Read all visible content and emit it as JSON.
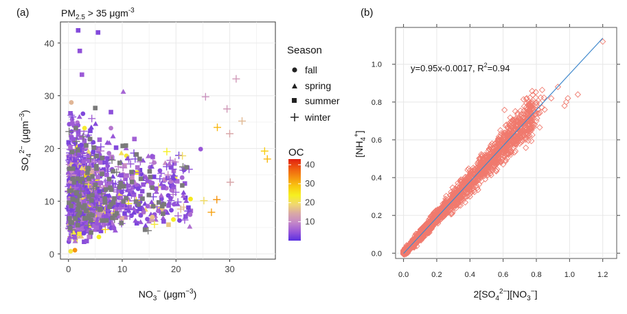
{
  "chart_data": [
    {
      "panel_label": "(a)",
      "type": "scatter",
      "title": {
        "prefix": "PM",
        "sub": "2.5",
        "mid": " > 35 μgm",
        "sup": "-3"
      },
      "xlabel": {
        "a": "NO",
        "a_sub": "3",
        "a_sup": "−",
        "b": " (μgm",
        "b_sup": "−3",
        "c": ")"
      },
      "ylabel": {
        "a": "SO",
        "a_sub": "4",
        "a_sup": "2−",
        "b": " (μgm",
        "b_sup": "−3",
        "c": ")"
      },
      "xlim": [
        -1.5,
        38.5
      ],
      "ylim": [
        -1,
        44
      ],
      "xticks": [
        "0",
        "10",
        "20",
        "30"
      ],
      "yticks": [
        "0",
        "10",
        "20",
        "30",
        "40"
      ],
      "grid": true,
      "legend_title": "Season",
      "legend": [
        {
          "name": "fall",
          "marker": "circle"
        },
        {
          "name": "spring",
          "marker": "triangle"
        },
        {
          "name": "summer",
          "marker": "square"
        },
        {
          "name": "winter",
          "marker": "plus"
        }
      ],
      "colorbar": {
        "title": "OC",
        "min": 0,
        "max": 43,
        "ticks": [
          "10",
          "20",
          "30",
          "40"
        ],
        "colors": [
          "#5a2fe0",
          "#9a58d8",
          "#c487c8",
          "#d9a8a6",
          "#f0d870",
          "#f6f020",
          "#f9c810",
          "#f59010",
          "#ef5a10",
          "#e02010"
        ]
      },
      "sample_points": [
        {
          "x": 1.8,
          "y": 42.4,
          "s": "summer",
          "oc": 3
        },
        {
          "x": 5.5,
          "y": 42.0,
          "s": "summer",
          "oc": 3
        },
        {
          "x": 2.1,
          "y": 38.5,
          "s": "summer",
          "oc": 4
        },
        {
          "x": 2.5,
          "y": 34.0,
          "s": "summer",
          "oc": 5
        },
        {
          "x": 10.2,
          "y": 30.8,
          "s": "spring",
          "oc": 6
        },
        {
          "x": 31.2,
          "y": 33.2,
          "s": "winter",
          "oc": 12
        },
        {
          "x": 25.5,
          "y": 29.8,
          "s": "winter",
          "oc": 11
        },
        {
          "x": 29.5,
          "y": 27.5,
          "s": "winter",
          "oc": 12
        },
        {
          "x": 36.5,
          "y": 19.5,
          "s": "winter",
          "oc": 28
        },
        {
          "x": 37.0,
          "y": 18.0,
          "s": "winter",
          "oc": 30
        },
        {
          "x": 32.3,
          "y": 25.2,
          "s": "winter",
          "oc": 16
        },
        {
          "x": 30.0,
          "y": 22.8,
          "s": "winter",
          "oc": 14
        },
        {
          "x": 27.7,
          "y": 24.0,
          "s": "winter",
          "oc": 30
        },
        {
          "x": 18.3,
          "y": 19.4,
          "s": "winter",
          "oc": 24
        },
        {
          "x": 21.2,
          "y": 18.6,
          "s": "winter",
          "oc": 20
        },
        {
          "x": 30.1,
          "y": 13.6,
          "s": "winter",
          "oc": 14
        },
        {
          "x": 27.6,
          "y": 10.3,
          "s": "winter",
          "oc": 33
        },
        {
          "x": 26.6,
          "y": 7.9,
          "s": "winter",
          "oc": 32
        },
        {
          "x": 25.2,
          "y": 10.1,
          "s": "winter",
          "oc": 20
        },
        {
          "x": 20.9,
          "y": 8.5,
          "s": "winter",
          "oc": 16
        },
        {
          "x": 16.0,
          "y": 5.6,
          "s": "winter",
          "oc": 22
        },
        {
          "x": 1.2,
          "y": 0.7,
          "s": "fall",
          "oc": 33
        },
        {
          "x": 0.4,
          "y": 0.5,
          "s": "fall",
          "oc": 22
        }
      ]
    },
    {
      "panel_label": "(b)",
      "type": "scatter",
      "xlabel": {
        "a": "2[SO",
        "a_sub": "4",
        "a_sup": "2−",
        "b": "][NO",
        "b_sub": "3",
        "b_sup": "−",
        "c": "]"
      },
      "ylabel": {
        "a": "[NH",
        "a_sub": "4",
        "a_sup": "+",
        "c": "]"
      },
      "xlim": [
        -0.048,
        1.284
      ],
      "ylim": [
        -0.028,
        1.195
      ],
      "xticks": [
        "0.0",
        "0.2",
        "0.4",
        "0.6",
        "0.8",
        "1.0",
        "1.2"
      ],
      "yticks": [
        "0.0",
        "0.2",
        "0.4",
        "0.6",
        "0.8",
        "1.0"
      ],
      "grid": true,
      "marker_color": "#f07a6e",
      "fit_color": "#3f88cc",
      "fit": {
        "slope": 0.95,
        "intercept": -0.0017,
        "r2": 0.94,
        "x_range": [
          0,
          1.2
        ]
      },
      "annotation": {
        "main": "y=0.95x-0.0017, R",
        "sup": "2",
        "tail": "=0.94"
      },
      "sample_points": [
        {
          "x": 1.2,
          "y": 1.12
        },
        {
          "x": 1.05,
          "y": 0.84
        },
        {
          "x": 0.97,
          "y": 0.78
        },
        {
          "x": 0.98,
          "y": 0.8
        },
        {
          "x": 0.99,
          "y": 0.82
        },
        {
          "x": 0.89,
          "y": 0.82
        },
        {
          "x": 0.93,
          "y": 0.88
        },
        {
          "x": 0.85,
          "y": 0.76
        },
        {
          "x": 0.75,
          "y": 0.73
        },
        {
          "x": 0.77,
          "y": 0.65
        },
        {
          "x": 0.62,
          "y": 0.68
        },
        {
          "x": 0.66,
          "y": 0.61
        },
        {
          "x": 0.8,
          "y": 0.7
        },
        {
          "x": 0.7,
          "y": 0.58
        },
        {
          "x": 0.6,
          "y": 0.47
        },
        {
          "x": 0.4,
          "y": 0.3
        },
        {
          "x": 0.37,
          "y": 0.4
        },
        {
          "x": 0.55,
          "y": 0.58
        }
      ]
    }
  ]
}
